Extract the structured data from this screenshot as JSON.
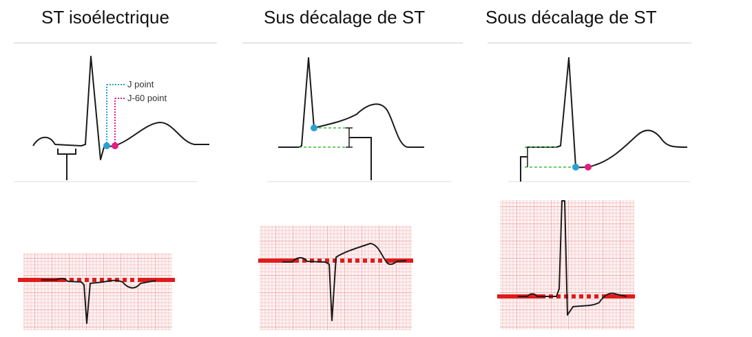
{
  "panels": [
    {
      "title": "ST isoélectrique"
    },
    {
      "title": "Sus décalage de ST"
    },
    {
      "title": "Sous décalage de ST"
    }
  ],
  "annotations": {
    "j_point": "J point",
    "j60_point": "J-60 point"
  },
  "colors": {
    "trace": "#1a1a1a",
    "j_point_marker": "#2a9fd6",
    "j60_point_marker": "#e0207e",
    "baseline_guide": "#3cb83c",
    "isoelectric_line": "#e01b1b",
    "ecg_grid_minor": "#f5c2c2",
    "ecg_grid_major": "#ea8f8f",
    "ecg_paper": "#fdf3f3"
  }
}
